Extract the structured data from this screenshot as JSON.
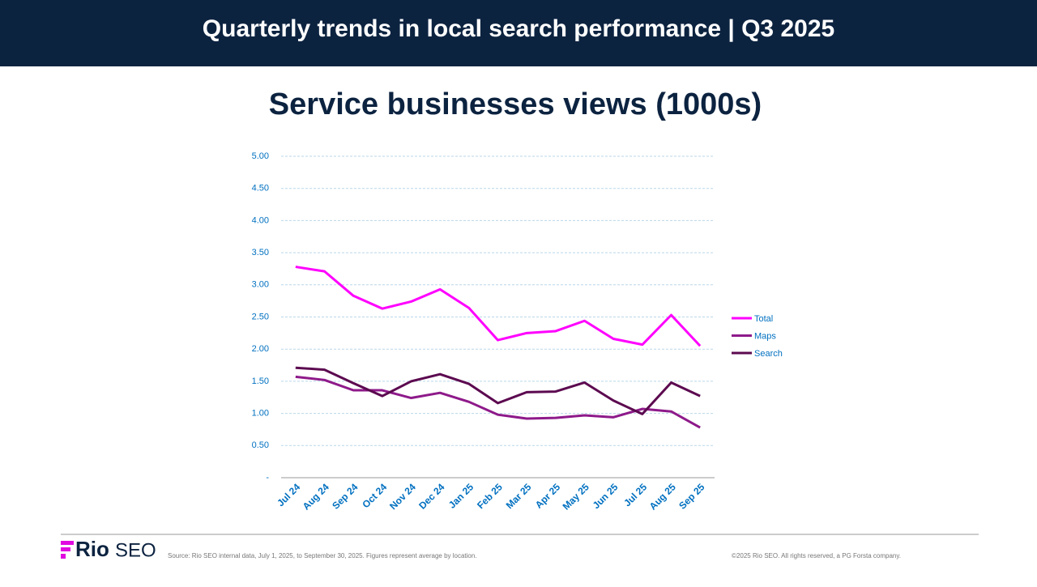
{
  "header": {
    "title": "Quarterly trends in local search performance | Q3 2025"
  },
  "chart_data": {
    "type": "line",
    "title": "Service businesses views (1000s)",
    "categories": [
      "Jul 24",
      "Aug 24",
      "Sep 24",
      "Oct 24",
      "Nov 24",
      "Dec 24",
      "Jan 25",
      "Feb 25",
      "Mar 25",
      "Apr 25",
      "May 25",
      "Jun 25",
      "Jul 25",
      "Aug 25",
      "Sep 25"
    ],
    "series": [
      {
        "name": "Total",
        "color": "#ff00ff",
        "values": [
          3.28,
          3.21,
          2.83,
          2.63,
          2.74,
          2.93,
          2.64,
          2.14,
          2.25,
          2.28,
          2.44,
          2.16,
          2.07,
          2.53,
          2.05
        ]
      },
      {
        "name": "Maps",
        "color": "#8e1a8a",
        "values": [
          1.57,
          1.52,
          1.36,
          1.36,
          1.24,
          1.32,
          1.18,
          0.98,
          0.92,
          0.93,
          0.97,
          0.94,
          1.07,
          1.03,
          0.78
        ]
      },
      {
        "name": "Search",
        "color": "#5c0a50",
        "values": [
          1.71,
          1.68,
          1.47,
          1.27,
          1.5,
          1.61,
          1.46,
          1.16,
          1.33,
          1.34,
          1.48,
          1.2,
          0.99,
          1.48,
          1.27
        ]
      }
    ],
    "ylim": [
      0,
      5
    ],
    "yticks": [
      {
        "value": 0,
        "label": "-"
      },
      {
        "value": 0.5,
        "label": "0.50"
      },
      {
        "value": 1,
        "label": "1.00"
      },
      {
        "value": 1.5,
        "label": "1.50"
      },
      {
        "value": 2,
        "label": "2.00"
      },
      {
        "value": 2.5,
        "label": "2.50"
      },
      {
        "value": 3,
        "label": "3.00"
      },
      {
        "value": 3.5,
        "label": "3.50"
      },
      {
        "value": 4,
        "label": "4.00"
      },
      {
        "value": 4.5,
        "label": "4.50"
      },
      {
        "value": 5,
        "label": "5.00"
      }
    ],
    "grid": true,
    "legend": "right"
  },
  "footer": {
    "brand": [
      "Rio",
      "SEO"
    ],
    "source": "Source: Rio SEO internal data, July 1, 2025, to September 30, 2025. Figures represent average by location.",
    "copyright": "©2025 Rio SEO. All rights reserved, a PG Forsta company."
  }
}
